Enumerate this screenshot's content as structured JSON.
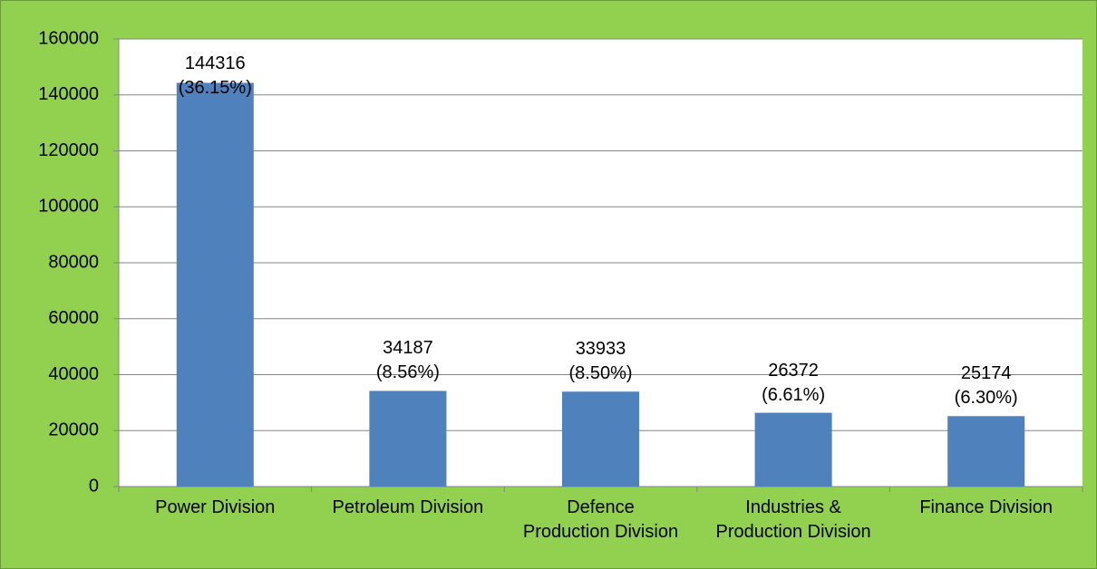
{
  "chart_data": {
    "type": "bar",
    "categories": [
      "Power Division",
      "Petroleum Division",
      "Defence\nProduction Division",
      "Industries &\nProduction Division",
      "Finance Division"
    ],
    "values": [
      144316,
      34187,
      33933,
      26372,
      25174
    ],
    "value_labels": [
      "144316\n(36.15%)",
      "34187\n(8.56%)",
      "33933\n(8.50%)",
      "26372\n(6.61%)",
      "25174\n(6.30%)"
    ],
    "color": "#4f81bd",
    "ylim": [
      0,
      160000
    ],
    "yticks": [
      0,
      20000,
      40000,
      60000,
      80000,
      100000,
      120000,
      140000,
      160000
    ],
    "grid": true
  }
}
